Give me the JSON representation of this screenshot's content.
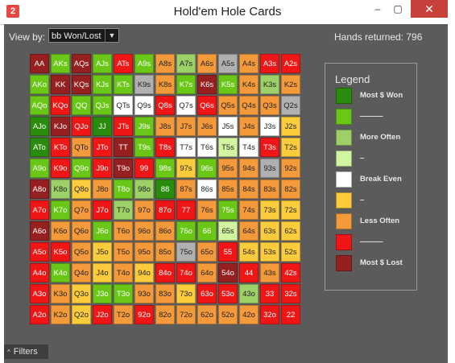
{
  "window": {
    "title": "Hold'em Hole Cards",
    "icon": "2",
    "minimize": "‒",
    "maximize": "▢",
    "close": "✕"
  },
  "toolbar": {
    "view_by_label": "View by:",
    "view_by_value": "bb Won/Lost",
    "hands_returned": "Hands returned:  796"
  },
  "colors": {
    "darkgreen": "#2a8c0c",
    "green": "#6ac718",
    "lightgreen": "#9ed068",
    "palegreen": "#d2f5a0",
    "white": "#ffffff",
    "yellow": "#fccc3c",
    "orange": "#f59a3a",
    "red": "#f01616",
    "darkred": "#962020",
    "gray": "#b0b0b0"
  },
  "grid": [
    [
      [
        "AA",
        "darkred"
      ],
      [
        "AKs",
        "green"
      ],
      [
        "AQs",
        "darkred"
      ],
      [
        "AJs",
        "green"
      ],
      [
        "ATs",
        "red"
      ],
      [
        "A9s",
        "green"
      ],
      [
        "A8s",
        "orange"
      ],
      [
        "A7s",
        "lightgreen"
      ],
      [
        "A6s",
        "orange"
      ],
      [
        "A5s",
        "gray"
      ],
      [
        "A4s",
        "orange"
      ],
      [
        "A3s",
        "red"
      ],
      [
        "A2s",
        "red"
      ]
    ],
    [
      [
        "AKo",
        "green"
      ],
      [
        "KK",
        "darkred"
      ],
      [
        "KQs",
        "darkred"
      ],
      [
        "KJs",
        "green"
      ],
      [
        "KTs",
        "green"
      ],
      [
        "K9s",
        "gray"
      ],
      [
        "K8s",
        "orange"
      ],
      [
        "K7s",
        "green"
      ],
      [
        "K6s",
        "darkred"
      ],
      [
        "K5s",
        "green"
      ],
      [
        "K4s",
        "orange"
      ],
      [
        "K3s",
        "lightgreen"
      ],
      [
        "K2s",
        "orange"
      ]
    ],
    [
      [
        "AQo",
        "green"
      ],
      [
        "KQo",
        "red"
      ],
      [
        "QQ",
        "green"
      ],
      [
        "QJs",
        "green"
      ],
      [
        "QTs",
        "white"
      ],
      [
        "Q9s",
        "white"
      ],
      [
        "Q8s",
        "red"
      ],
      [
        "Q7s",
        "white"
      ],
      [
        "Q6s",
        "red"
      ],
      [
        "Q5s",
        "orange"
      ],
      [
        "Q4s",
        "orange"
      ],
      [
        "Q3s",
        "orange"
      ],
      [
        "Q2s",
        "gray"
      ]
    ],
    [
      [
        "AJo",
        "darkgreen"
      ],
      [
        "KJo",
        "darkred"
      ],
      [
        "QJo",
        "red"
      ],
      [
        "JJ",
        "darkgreen"
      ],
      [
        "JTs",
        "red"
      ],
      [
        "J9s",
        "green"
      ],
      [
        "J8s",
        "orange"
      ],
      [
        "J7s",
        "orange"
      ],
      [
        "J6s",
        "orange"
      ],
      [
        "J5s",
        "white"
      ],
      [
        "J4s",
        "orange"
      ],
      [
        "J3s",
        "white"
      ],
      [
        "J2s",
        "yellow"
      ]
    ],
    [
      [
        "ATo",
        "darkgreen"
      ],
      [
        "KTo",
        "red"
      ],
      [
        "QTo",
        "orange"
      ],
      [
        "JTo",
        "red"
      ],
      [
        "TT",
        "darkred"
      ],
      [
        "T9s",
        "green"
      ],
      [
        "T8s",
        "red"
      ],
      [
        "T7s",
        "white"
      ],
      [
        "T6s",
        "white"
      ],
      [
        "T5s",
        "palegreen"
      ],
      [
        "T4s",
        "white"
      ],
      [
        "T3s",
        "red"
      ],
      [
        "T2s",
        "yellow"
      ]
    ],
    [
      [
        "A9o",
        "green"
      ],
      [
        "K9o",
        "red"
      ],
      [
        "Q9o",
        "green"
      ],
      [
        "J9o",
        "red"
      ],
      [
        "T9o",
        "darkred"
      ],
      [
        "99",
        "red"
      ],
      [
        "98s",
        "green"
      ],
      [
        "97s",
        "yellow"
      ],
      [
        "96s",
        "green"
      ],
      [
        "95s",
        "orange"
      ],
      [
        "94s",
        "orange"
      ],
      [
        "93s",
        "gray"
      ],
      [
        "92s",
        "orange"
      ]
    ],
    [
      [
        "A8o",
        "darkred"
      ],
      [
        "K8o",
        "lightgreen"
      ],
      [
        "Q8o",
        "yellow"
      ],
      [
        "J8o",
        "orange"
      ],
      [
        "T8o",
        "green"
      ],
      [
        "98o",
        "lightgreen"
      ],
      [
        "88",
        "darkgreen"
      ],
      [
        "87s",
        "orange"
      ],
      [
        "86s",
        "white"
      ],
      [
        "85s",
        "orange"
      ],
      [
        "84s",
        "orange"
      ],
      [
        "83s",
        "orange"
      ],
      [
        "82s",
        "orange"
      ]
    ],
    [
      [
        "A7o",
        "red"
      ],
      [
        "K7o",
        "green"
      ],
      [
        "Q7o",
        "orange"
      ],
      [
        "J7o",
        "red"
      ],
      [
        "T7o",
        "lightgreen"
      ],
      [
        "97o",
        "orange"
      ],
      [
        "87o",
        "red"
      ],
      [
        "77",
        "red"
      ],
      [
        "76s",
        "orange"
      ],
      [
        "75s",
        "green"
      ],
      [
        "74s",
        "orange"
      ],
      [
        "73s",
        "yellow"
      ],
      [
        "72s",
        "yellow"
      ]
    ],
    [
      [
        "A6o",
        "darkred"
      ],
      [
        "K6o",
        "orange"
      ],
      [
        "Q6o",
        "orange"
      ],
      [
        "J6o",
        "green"
      ],
      [
        "T6o",
        "orange"
      ],
      [
        "96o",
        "orange"
      ],
      [
        "86o",
        "orange"
      ],
      [
        "76o",
        "green"
      ],
      [
        "66",
        "green"
      ],
      [
        "65s",
        "palegreen"
      ],
      [
        "64s",
        "orange"
      ],
      [
        "63s",
        "yellow"
      ],
      [
        "62s",
        "yellow"
      ]
    ],
    [
      [
        "A5o",
        "red"
      ],
      [
        "K5o",
        "red"
      ],
      [
        "Q5o",
        "orange"
      ],
      [
        "J5o",
        "yellow"
      ],
      [
        "T5o",
        "orange"
      ],
      [
        "95o",
        "orange"
      ],
      [
        "85o",
        "orange"
      ],
      [
        "75o",
        "gray"
      ],
      [
        "65o",
        "orange"
      ],
      [
        "55",
        "red"
      ],
      [
        "54s",
        "yellow"
      ],
      [
        "53s",
        "yellow"
      ],
      [
        "52s",
        "yellow"
      ]
    ],
    [
      [
        "A4o",
        "red"
      ],
      [
        "K4o",
        "green"
      ],
      [
        "Q4o",
        "orange"
      ],
      [
        "J4o",
        "yellow"
      ],
      [
        "T4o",
        "orange"
      ],
      [
        "94o",
        "yellow"
      ],
      [
        "84o",
        "red"
      ],
      [
        "74o",
        "red"
      ],
      [
        "64o",
        "orange"
      ],
      [
        "54o",
        "darkred"
      ],
      [
        "44",
        "red"
      ],
      [
        "43s",
        "orange"
      ],
      [
        "42s",
        "red"
      ]
    ],
    [
      [
        "A3o",
        "red"
      ],
      [
        "K3o",
        "orange"
      ],
      [
        "Q3o",
        "yellow"
      ],
      [
        "J3o",
        "green"
      ],
      [
        "T3o",
        "green"
      ],
      [
        "93o",
        "orange"
      ],
      [
        "83o",
        "orange"
      ],
      [
        "73o",
        "yellow"
      ],
      [
        "63o",
        "red"
      ],
      [
        "53o",
        "red"
      ],
      [
        "43o",
        "lightgreen"
      ],
      [
        "33",
        "red"
      ],
      [
        "32s",
        "red"
      ]
    ],
    [
      [
        "A2o",
        "red"
      ],
      [
        "K2o",
        "orange"
      ],
      [
        "Q2o",
        "yellow"
      ],
      [
        "J2o",
        "red"
      ],
      [
        "T2o",
        "orange"
      ],
      [
        "92o",
        "red"
      ],
      [
        "82o",
        "orange"
      ],
      [
        "72o",
        "orange"
      ],
      [
        "62o",
        "orange"
      ],
      [
        "52o",
        "orange"
      ],
      [
        "42o",
        "orange"
      ],
      [
        "32o",
        "red"
      ],
      [
        "22",
        "red"
      ]
    ]
  ],
  "legend": {
    "title": "Legend",
    "items": [
      {
        "label": "Most $ Won",
        "color": "darkgreen"
      },
      {
        "label": "———",
        "color": "green"
      },
      {
        "label": "More Often",
        "color": "lightgreen"
      },
      {
        "label": "–",
        "color": "palegreen"
      },
      {
        "label": "Break Even",
        "color": "white"
      },
      {
        "label": "–",
        "color": "yellow"
      },
      {
        "label": "Less Often",
        "color": "orange"
      },
      {
        "label": "———",
        "color": "red"
      },
      {
        "label": "Most $ Lost",
        "color": "darkred"
      }
    ]
  },
  "footer": {
    "filters_label": "Filters"
  }
}
